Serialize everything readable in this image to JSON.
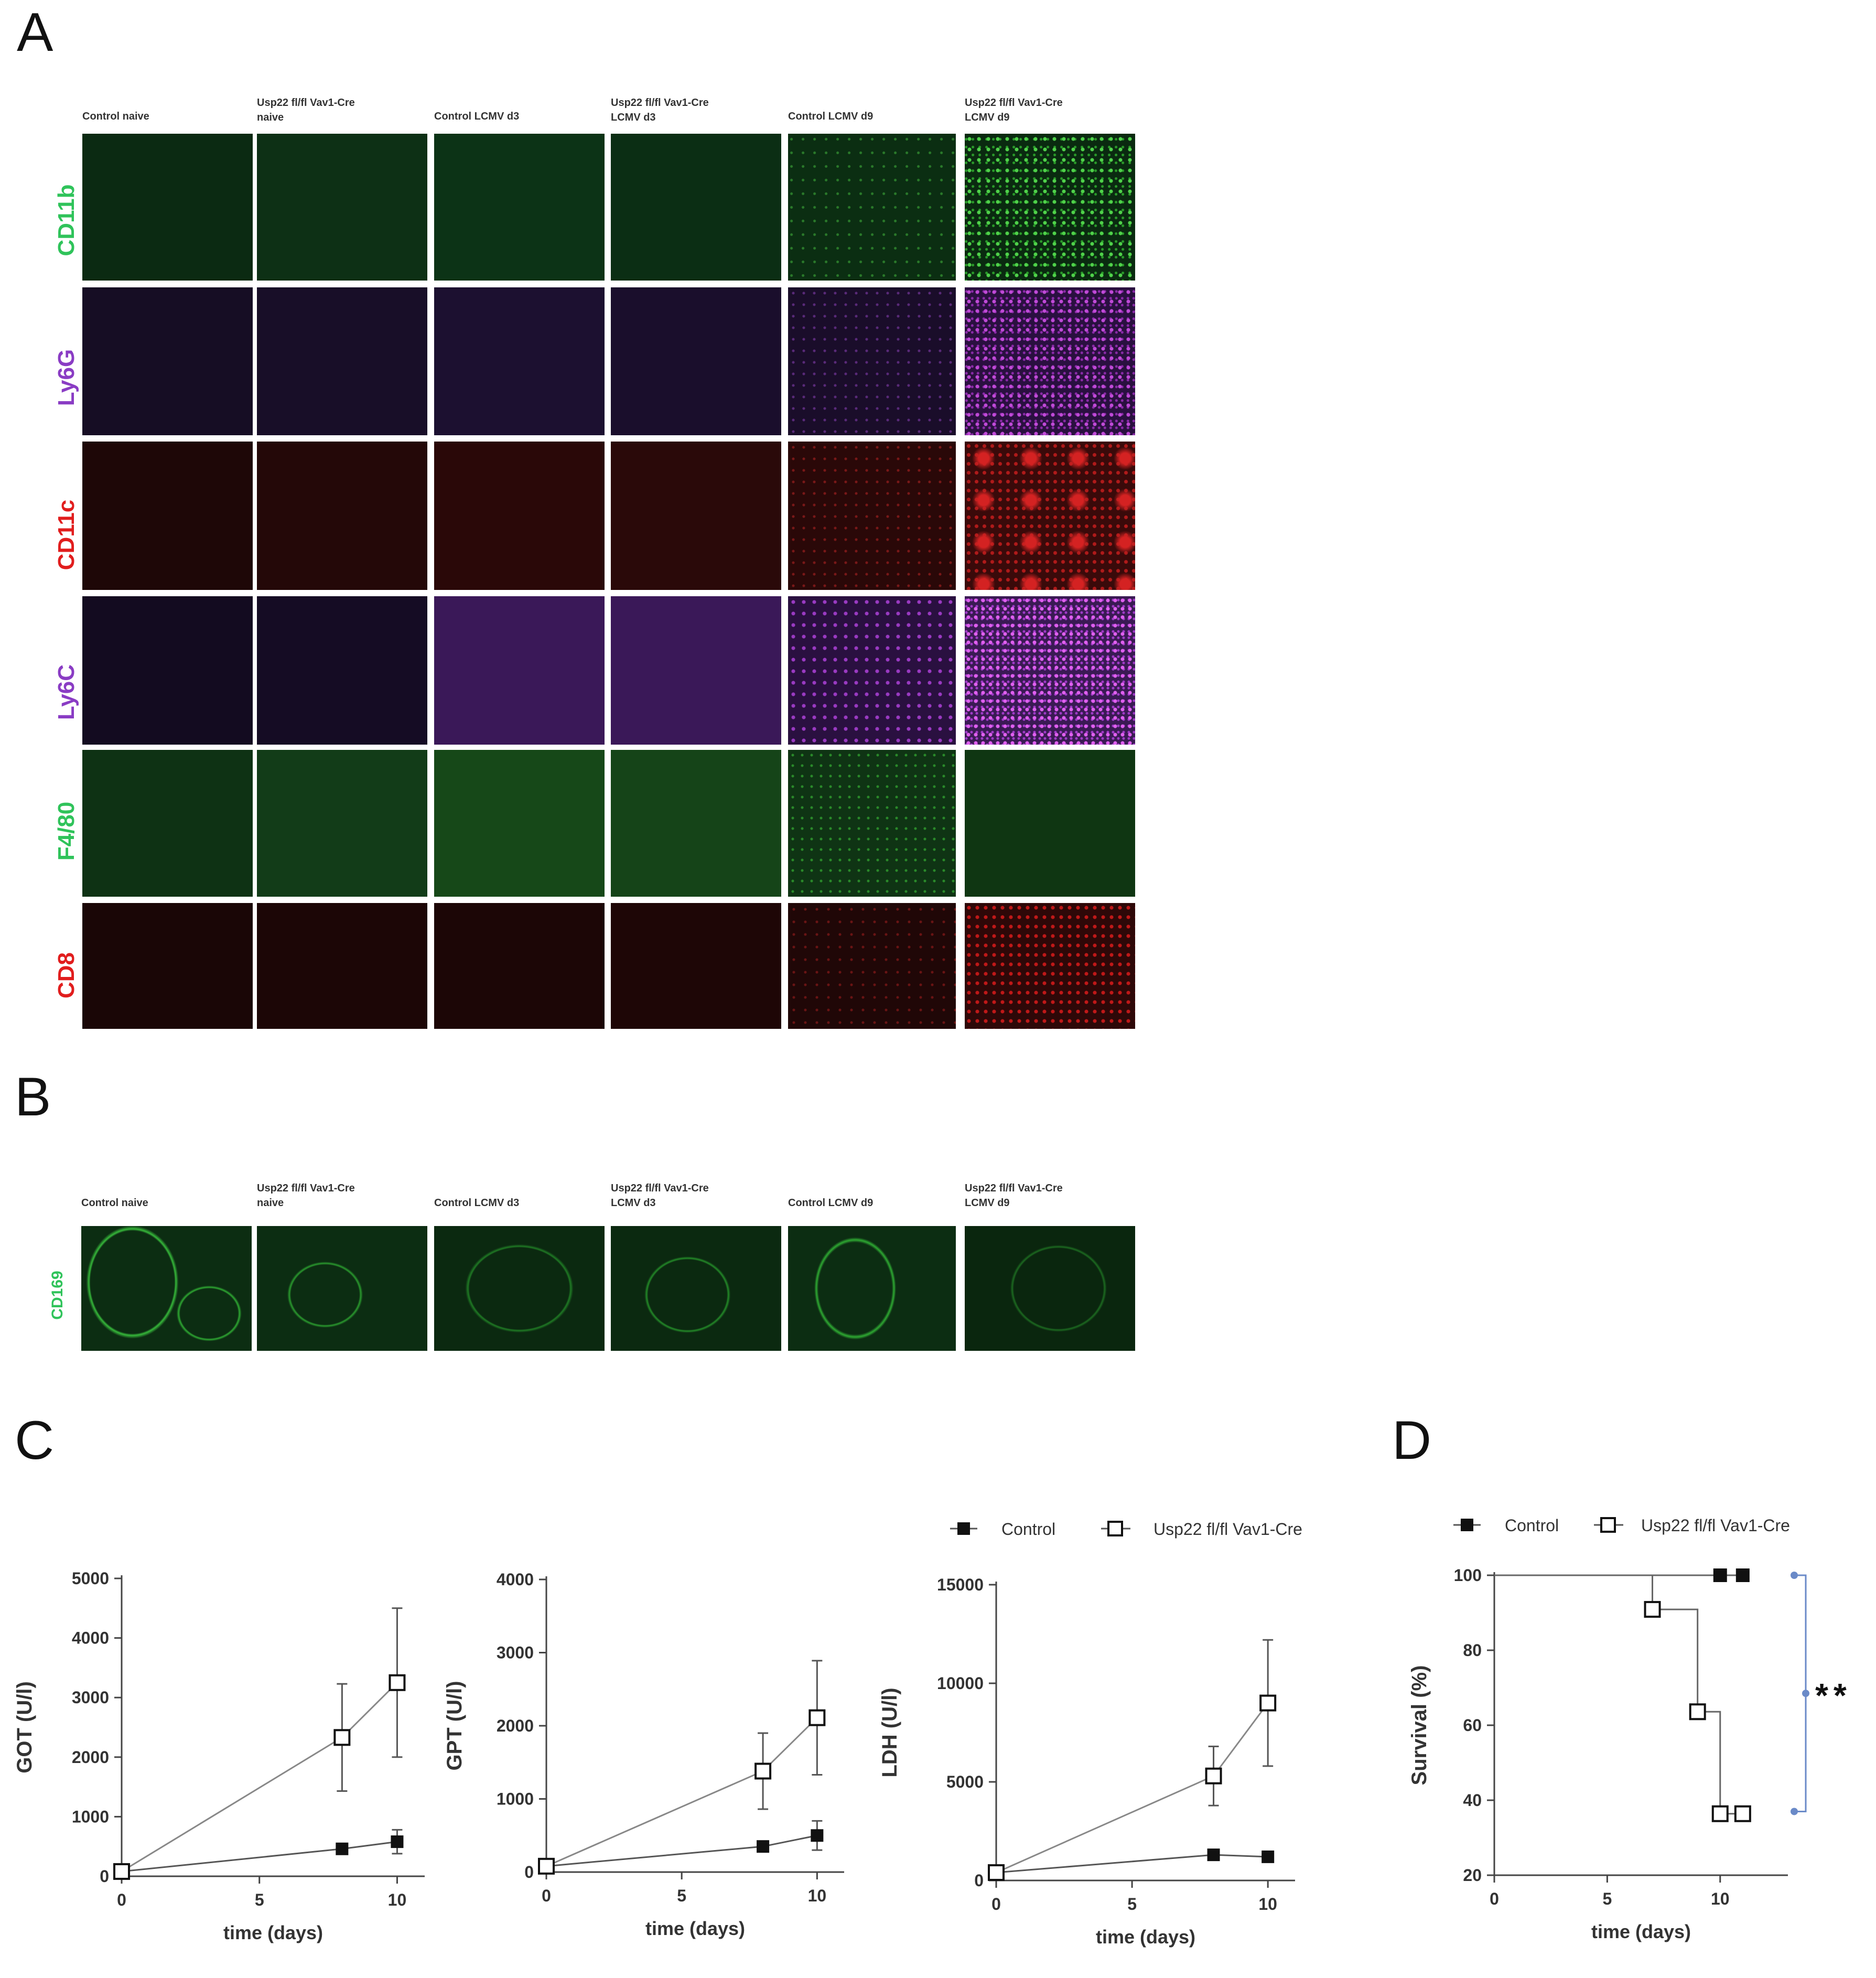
{
  "panels": {
    "a": "A",
    "b": "B",
    "c": "C",
    "d": "D"
  },
  "microscopy_a": {
    "columns": [
      "Control naive",
      "Usp22 fl/fl Vav1-Cre\nnaive",
      "Control LCMV d3",
      "Usp22 fl/fl Vav1-Cre\nLCMV d3",
      "Control LCMV d9",
      "Usp22 fl/fl Vav1-Cre\nLCMV d9"
    ],
    "rows": [
      {
        "label": "CD11b",
        "color": "#2fc35a"
      },
      {
        "label": "Ly6G",
        "color": "#8a3cc4"
      },
      {
        "label": "CD11c",
        "color": "#e11d1d"
      },
      {
        "label": "Ly6C",
        "color": "#8a3cc4"
      },
      {
        "label": "F4/80",
        "color": "#2fc35a"
      },
      {
        "label": "CD8",
        "color": "#e11d1d"
      }
    ]
  },
  "microscopy_b": {
    "columns": [
      "Control naive",
      "Usp22 fl/fl Vav1-Cre\nnaive",
      "Control LCMV d3",
      "Usp22 fl/fl Vav1-Cre\nLCMV d3",
      "Control LCMV d9",
      "Usp22 fl/fl Vav1-Cre\nLCMV d9"
    ],
    "row_label": {
      "label": "CD169",
      "color": "#2fc35a"
    }
  },
  "legend_c": {
    "control": "Control",
    "ko": "Usp22 fl/fl Vav1-Cre"
  },
  "legend_d": {
    "control": "Control",
    "ko": "Usp22 fl/fl Vav1-Cre"
  },
  "significance_d": "**",
  "chart_data": [
    {
      "type": "line",
      "panel": "C",
      "xlabel": "time (days)",
      "ylabel": "GOT (U/l)",
      "xlim": [
        0,
        11
      ],
      "ylim": [
        0,
        5000
      ],
      "xticks": [
        0,
        5,
        10
      ],
      "yticks": [
        0,
        1000,
        2000,
        3000,
        4000,
        5000
      ],
      "series": [
        {
          "name": "Control",
          "marker": "filled-square",
          "x": [
            0,
            8,
            10
          ],
          "y": [
            80,
            460,
            580
          ],
          "err": [
            0,
            0,
            200
          ]
        },
        {
          "name": "Usp22 fl/fl Vav1-Cre",
          "marker": "open-square",
          "x": [
            0,
            8,
            10
          ],
          "y": [
            80,
            2330,
            3250
          ],
          "err": [
            0,
            900,
            1250
          ]
        }
      ]
    },
    {
      "type": "line",
      "panel": "C",
      "xlabel": "time (days)",
      "ylabel": "GPT (U/l)",
      "xlim": [
        0,
        11
      ],
      "ylim": [
        0,
        4000
      ],
      "xticks": [
        0,
        5,
        10
      ],
      "yticks": [
        0,
        1000,
        2000,
        3000,
        4000
      ],
      "series": [
        {
          "name": "Control",
          "marker": "filled-square",
          "x": [
            0,
            8,
            10
          ],
          "y": [
            80,
            350,
            500
          ],
          "err": [
            0,
            0,
            200
          ]
        },
        {
          "name": "Usp22 fl/fl Vav1-Cre",
          "marker": "open-square",
          "x": [
            0,
            8,
            10
          ],
          "y": [
            80,
            1380,
            2110
          ],
          "err": [
            0,
            520,
            780
          ]
        }
      ]
    },
    {
      "type": "line",
      "panel": "C",
      "xlabel": "time (days)",
      "ylabel": "LDH (U/l)",
      "xlim": [
        0,
        11
      ],
      "ylim": [
        0,
        15000
      ],
      "xticks": [
        0,
        5,
        10
      ],
      "yticks": [
        0,
        5000,
        10000,
        15000
      ],
      "series": [
        {
          "name": "Control",
          "marker": "filled-square",
          "x": [
            0,
            8,
            10
          ],
          "y": [
            400,
            1300,
            1200
          ],
          "err": [
            0,
            0,
            0
          ]
        },
        {
          "name": "Usp22 fl/fl Vav1-Cre",
          "marker": "open-square",
          "x": [
            0,
            8,
            10
          ],
          "y": [
            400,
            5300,
            9000
          ],
          "err": [
            0,
            1500,
            3200
          ]
        }
      ]
    },
    {
      "type": "line",
      "panel": "D",
      "xlabel": "time (days)",
      "ylabel": "Survival (%)",
      "xlim": [
        0,
        13
      ],
      "ylim": [
        20,
        100
      ],
      "xticks": [
        0,
        5,
        10
      ],
      "yticks": [
        20,
        40,
        60,
        80,
        100
      ],
      "series": [
        {
          "name": "Control",
          "marker": "filled-square",
          "step": true,
          "x": [
            0,
            10,
            11
          ],
          "y": [
            100,
            100,
            100
          ],
          "markers_x": [
            10,
            11
          ]
        },
        {
          "name": "Usp22 fl/fl Vav1-Cre",
          "marker": "open-square",
          "step": true,
          "x": [
            0,
            7,
            9,
            10,
            11
          ],
          "y": [
            100,
            90.9,
            63.6,
            36.4,
            36.4
          ],
          "markers_x": [
            7,
            9,
            10,
            11
          ]
        }
      ]
    }
  ]
}
